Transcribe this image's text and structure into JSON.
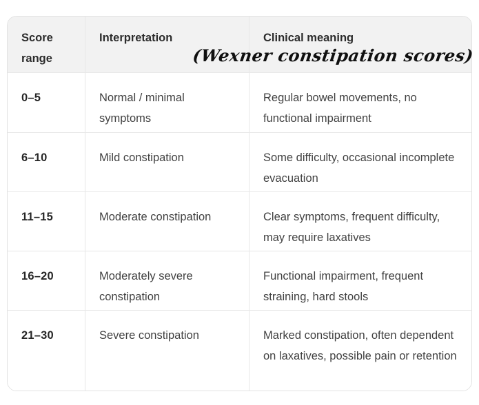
{
  "table": {
    "annotation": "(Wexner constipation scores)",
    "columns": [
      {
        "label": "Score range"
      },
      {
        "label": "Interpretation"
      },
      {
        "label": "Clinical meaning"
      }
    ],
    "rows": [
      {
        "range": "0–5",
        "interpretation": "Normal / minimal symptoms",
        "meaning": "Regular bowel movements, no functional impairment"
      },
      {
        "range": "6–10",
        "interpretation": "Mild constipation",
        "meaning": "Some difficulty, occasional incomplete evacuation"
      },
      {
        "range": "11–15",
        "interpretation": "Moderate constipation",
        "meaning": "Clear symptoms, frequent difficulty, may require laxatives"
      },
      {
        "range": "16–20",
        "interpretation": "Moderately severe constipation",
        "meaning": "Functional impairment, frequent straining, hard stools"
      },
      {
        "range": "21–30",
        "interpretation": "Severe constipation",
        "meaning": "Marked constipation, often dependent on laxatives, possible pain or retention"
      }
    ],
    "colors": {
      "header_bg": "#f2f2f2",
      "border": "#e7e7e7",
      "header_text": "#2c2c2c",
      "body_text": "#414141",
      "annotation_text": "#101010"
    }
  }
}
